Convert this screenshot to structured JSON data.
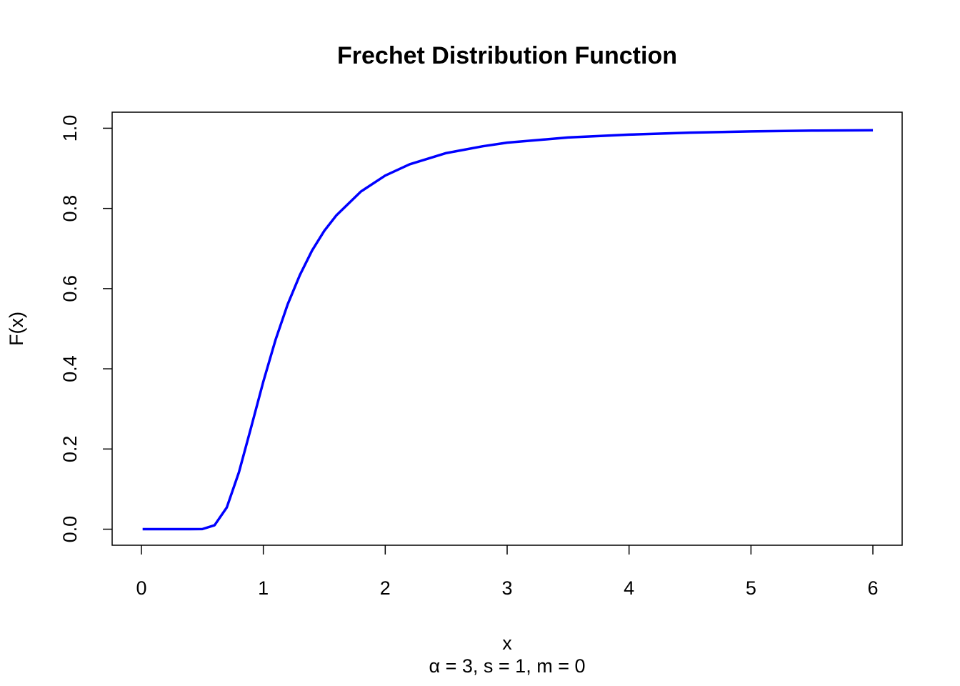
{
  "chart_data": {
    "type": "line",
    "title": "Frechet Distribution Function",
    "x_label": "x",
    "y_label": "F(x)",
    "subtitle": "α = 3,  s = 1,  m = 0",
    "x": [
      0.01,
      0.2,
      0.4,
      0.5,
      0.6,
      0.7,
      0.8,
      0.9,
      1.0,
      1.1,
      1.2,
      1.3,
      1.4,
      1.5,
      1.6,
      1.8,
      2.0,
      2.2,
      2.5,
      2.8,
      3.0,
      3.5,
      4,
      4.5,
      5,
      5.5,
      6
    ],
    "series": [
      {
        "name": "F(x)",
        "color": "#0000ff",
        "values": [
          0,
          0,
          0,
          0.0003,
          0.0098,
          0.054,
          0.142,
          0.254,
          0.368,
          0.472,
          0.561,
          0.634,
          0.695,
          0.744,
          0.783,
          0.842,
          0.882,
          0.91,
          0.938,
          0.955,
          0.964,
          0.977,
          0.984,
          0.989,
          0.992,
          0.994,
          0.995
        ]
      }
    ],
    "xlim": [
      -0.24,
      6.24
    ],
    "ylim": [
      -0.04,
      1.04
    ],
    "xticks": [
      0,
      1,
      2,
      3,
      4,
      5,
      6
    ],
    "yticks": [
      {
        "value": 0,
        "label": "0.0"
      },
      0.2,
      0.4,
      0.6,
      0.8,
      {
        "value": 1,
        "label": "1.0"
      }
    ],
    "grid": false
  }
}
